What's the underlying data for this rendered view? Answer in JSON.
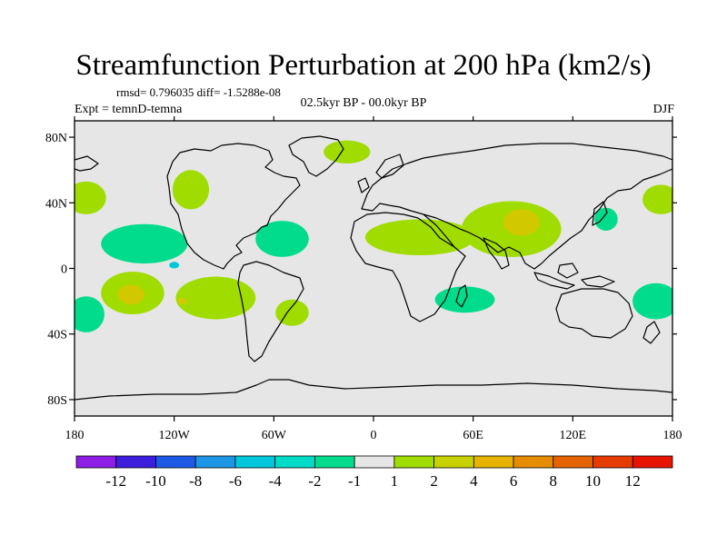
{
  "title": "Streamfunction Perturbation at 200 hPa (km2/s)",
  "stats": "rmsd= 0.796035 diff= -1.5288e-08",
  "experiment": "Expt = temnD-temna",
  "period": "02.5kyr BP - 00.0kyr BP",
  "season": "DJF",
  "map_data": {
    "projection": "cylindrical equidistant",
    "lon_range": [
      -180,
      180
    ],
    "lat_range": [
      -90,
      90
    ],
    "lon_ticks": [
      {
        "value": -180,
        "label": "180"
      },
      {
        "value": -120,
        "label": "120W"
      },
      {
        "value": -60,
        "label": "60W"
      },
      {
        "value": 0,
        "label": "0"
      },
      {
        "value": 60,
        "label": "60E"
      },
      {
        "value": 120,
        "label": "120E"
      },
      {
        "value": 180,
        "label": "180"
      }
    ],
    "lat_ticks": [
      {
        "value": 80,
        "label": "80N"
      },
      {
        "value": 40,
        "label": "40N"
      },
      {
        "value": 0,
        "label": "0"
      },
      {
        "value": -40,
        "label": "40S"
      },
      {
        "value": -80,
        "label": "80S"
      }
    ],
    "background_color": "#e6e6e6",
    "anomaly_regions": [
      {
        "name": "n-atlantic-positive",
        "level": "1 to 2",
        "color": "#a0dc00",
        "lon": -16,
        "lat": 71,
        "rlon": 14,
        "rlat": 7
      },
      {
        "name": "ne-pacific-positive",
        "level": "1 to 2",
        "color": "#a0dc00",
        "lon": -173,
        "lat": 43,
        "rlon": 12,
        "rlat": 10
      },
      {
        "name": "n-america-positive",
        "level": "1 to 2",
        "color": "#a0dc00",
        "lon": -110,
        "lat": 48,
        "rlon": 11,
        "rlat": 12
      },
      {
        "name": "tropical-pacific-negative",
        "level": "-2 to -1",
        "color": "#00dc8c",
        "lon": -138,
        "lat": 15,
        "rlon": 26,
        "rlat": 12
      },
      {
        "name": "caribbean-negative",
        "level": "-2 to -1",
        "color": "#00dc8c",
        "lon": -55,
        "lat": 18,
        "rlon": 16,
        "rlat": 11
      },
      {
        "name": "pacific-minimum-core",
        "level": "-4 to -2",
        "color": "#00c8dc",
        "lon": -120,
        "lat": 2,
        "rlon": 3,
        "rlat": 2
      },
      {
        "name": "s-pacific-positive",
        "level": "1 to 2",
        "color": "#a0dc00",
        "lon": -145,
        "lat": -15,
        "rlon": 19,
        "rlat": 13
      },
      {
        "name": "s-pacific-core",
        "level": "2 to 4",
        "color": "#d2c800",
        "lon": -146,
        "lat": -16,
        "rlon": 8,
        "rlat": 6
      },
      {
        "name": "se-pacific-positive",
        "level": "1 to 2",
        "color": "#a0dc00",
        "lon": -95,
        "lat": -18,
        "rlon": 24,
        "rlat": 13
      },
      {
        "name": "se-pacific-core",
        "level": "2 to 4",
        "color": "#d2c800",
        "lon": -115,
        "lat": -20,
        "rlon": 3,
        "rlat": 2
      },
      {
        "name": "s-america-positive",
        "level": "1 to 2",
        "color": "#a0dc00",
        "lon": -49,
        "lat": -27,
        "rlon": 10,
        "rlat": 8
      },
      {
        "name": "sw-pacific-negative",
        "level": "-2 to -1",
        "color": "#00dc8c",
        "lon": -173,
        "lat": -28,
        "rlon": 11,
        "rlat": 11
      },
      {
        "name": "africa-asia-positive",
        "level": "1 to 2",
        "color": "#a0dc00",
        "lon": 28,
        "lat": 19,
        "rlon": 33,
        "rlat": 11
      },
      {
        "name": "s-asia-positive",
        "level": "1 to 2",
        "color": "#a0dc00",
        "lon": 83,
        "lat": 24,
        "rlon": 30,
        "rlat": 17
      },
      {
        "name": "tibet-core",
        "level": "2 to 4",
        "color": "#d2c800",
        "lon": 89,
        "lat": 28,
        "rlon": 11,
        "rlat": 8
      },
      {
        "name": "indian-ocean-negative",
        "level": "-2 to -1",
        "color": "#00dc8c",
        "lon": 55,
        "lat": -19,
        "rlon": 18,
        "rlat": 8
      },
      {
        "name": "nw-pacific-negative",
        "level": "-2 to -1",
        "color": "#00dc8c",
        "lon": 140,
        "lat": 30,
        "rlon": 7,
        "rlat": 7
      },
      {
        "name": "n-pacific-positive",
        "level": "1 to 2",
        "color": "#a0dc00",
        "lon": 173,
        "lat": 42,
        "rlon": 11,
        "rlat": 9
      },
      {
        "name": "w-pacific-negative",
        "level": "-2 to -1",
        "color": "#00dc8c",
        "lon": 170,
        "lat": -20,
        "rlon": 14,
        "rlat": 11
      }
    ]
  },
  "colorbar": {
    "colors": [
      "#8c1ee6",
      "#3c1edc",
      "#1e5ae6",
      "#1e96e6",
      "#00c8dc",
      "#00dcc8",
      "#00dc8c",
      "#e6e6e6",
      "#a0dc00",
      "#c8d200",
      "#e6b400",
      "#e68c00",
      "#e66400",
      "#e63c00",
      "#e61400"
    ],
    "labels": [
      "-12",
      "-10",
      "-8",
      "-6",
      "-4",
      "-2",
      "-1",
      "1",
      "2",
      "4",
      "6",
      "8",
      "10",
      "12"
    ]
  }
}
